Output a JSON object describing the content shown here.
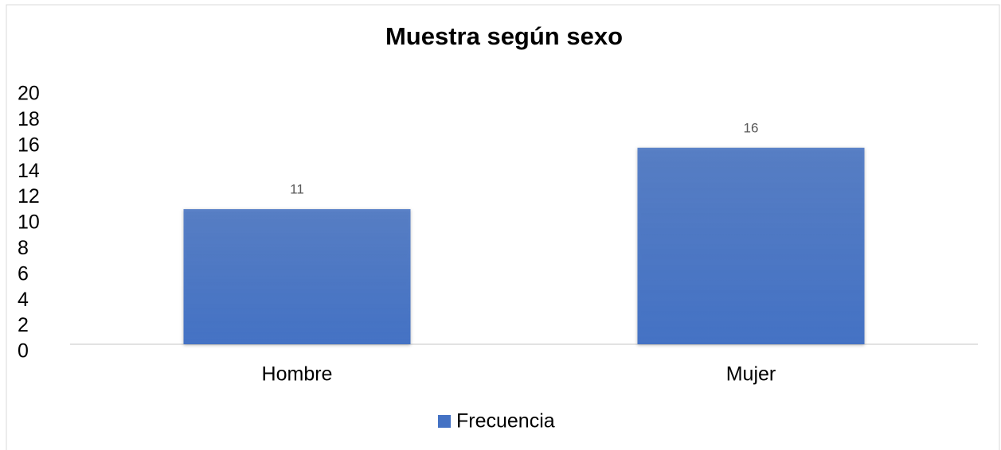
{
  "chart_data": {
    "type": "bar",
    "title": "Muestra según sexo",
    "categories": [
      "Hombre",
      "Mujer"
    ],
    "series": [
      {
        "name": "Frecuencia",
        "color": "#4472c4",
        "values": [
          11,
          16
        ]
      }
    ],
    "ylim": [
      0,
      20
    ],
    "yticks": [
      0,
      2,
      4,
      6,
      8,
      10,
      12,
      14,
      16,
      18,
      20
    ],
    "legend": "bottom"
  }
}
